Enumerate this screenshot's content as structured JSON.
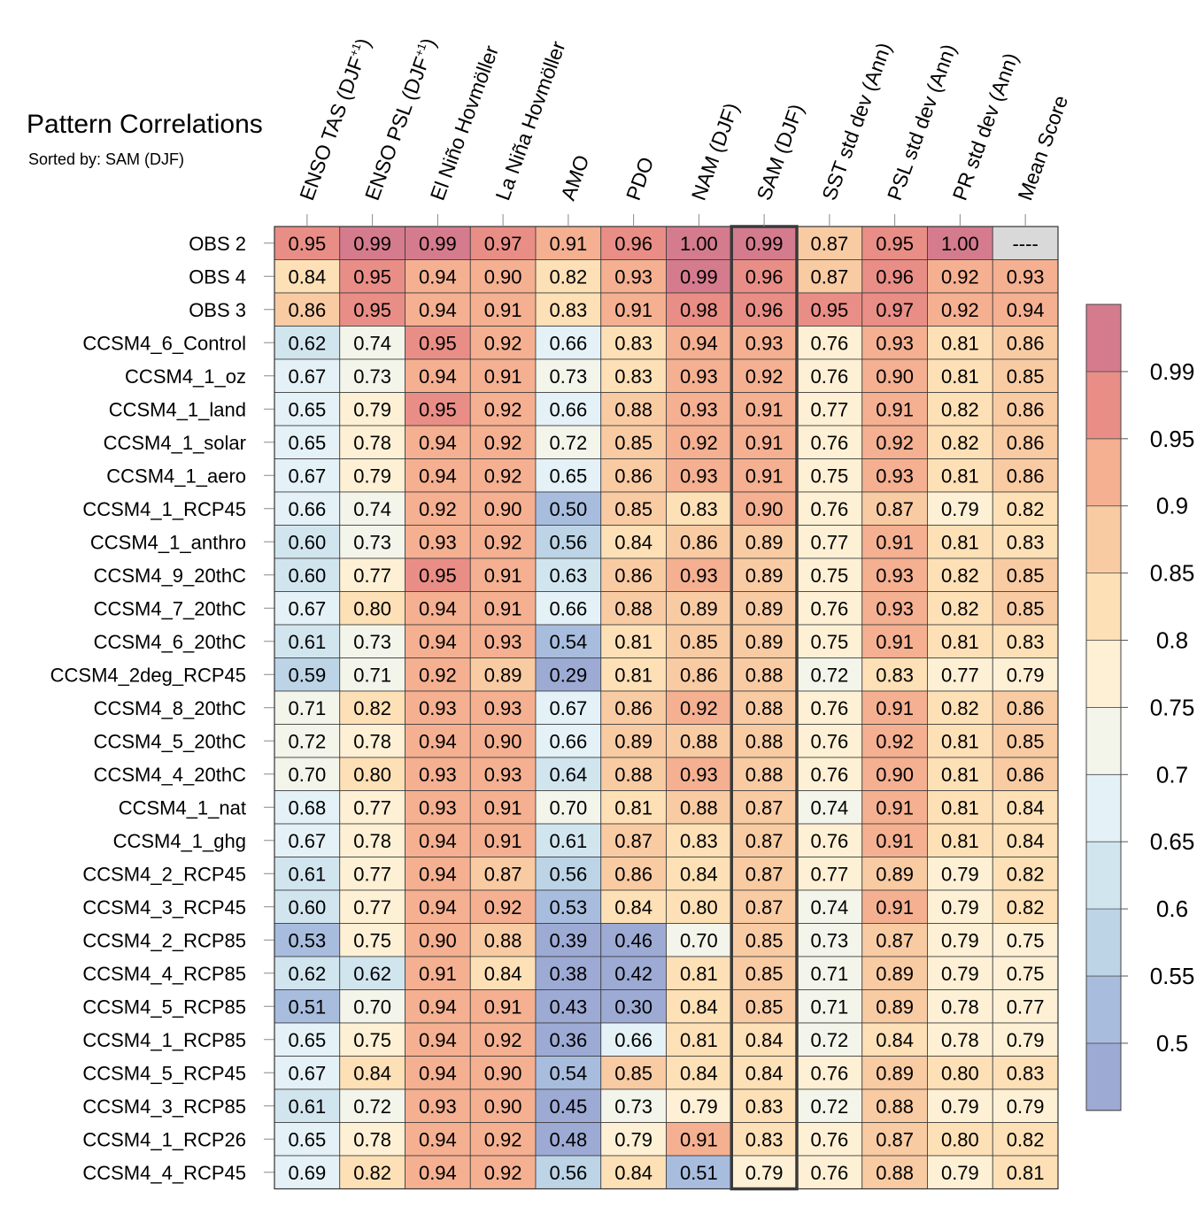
{
  "chart_data": {
    "type": "heatmap",
    "title": "Pattern Correlations",
    "subtitle": "Sorted by: SAM (DJF)",
    "columns": [
      {
        "base": "ENSO TAS (DJF",
        "sup": "+1",
        "tail": ")"
      },
      {
        "base": "ENSO PSL (DJF",
        "sup": "+1",
        "tail": ")"
      },
      {
        "base": "El Niño Hovmöller",
        "sup": "",
        "tail": ""
      },
      {
        "base": "La Niña Hovmöller",
        "sup": "",
        "tail": ""
      },
      {
        "base": "AMO",
        "sup": "",
        "tail": ""
      },
      {
        "base": "PDO",
        "sup": "",
        "tail": ""
      },
      {
        "base": "NAM (DJF)",
        "sup": "",
        "tail": ""
      },
      {
        "base": "SAM (DJF)",
        "sup": "",
        "tail": ""
      },
      {
        "base": "SST std dev (Ann)",
        "sup": "",
        "tail": ""
      },
      {
        "base": "PSL std dev (Ann)",
        "sup": "",
        "tail": ""
      },
      {
        "base": "PR std dev (Ann)",
        "sup": "",
        "tail": ""
      },
      {
        "base": "Mean Score",
        "sup": "",
        "tail": ""
      }
    ],
    "highlight_column": 7,
    "missing_label": "----",
    "rows": [
      {
        "name": "OBS 2",
        "values": [
          0.95,
          0.99,
          0.99,
          0.97,
          0.91,
          0.96,
          1.0,
          0.99,
          0.87,
          0.95,
          1.0,
          null
        ]
      },
      {
        "name": "OBS 4",
        "values": [
          0.84,
          0.95,
          0.94,
          0.9,
          0.82,
          0.93,
          0.99,
          0.96,
          0.87,
          0.96,
          0.92,
          0.93
        ]
      },
      {
        "name": "OBS 3",
        "values": [
          0.86,
          0.95,
          0.94,
          0.91,
          0.83,
          0.91,
          0.98,
          0.96,
          0.95,
          0.97,
          0.92,
          0.94
        ]
      },
      {
        "name": "CCSM4_6_Control",
        "values": [
          0.62,
          0.74,
          0.95,
          0.92,
          0.66,
          0.83,
          0.94,
          0.93,
          0.76,
          0.93,
          0.81,
          0.86
        ]
      },
      {
        "name": "CCSM4_1_oz",
        "values": [
          0.67,
          0.73,
          0.94,
          0.91,
          0.73,
          0.83,
          0.93,
          0.92,
          0.76,
          0.9,
          0.81,
          0.85
        ]
      },
      {
        "name": "CCSM4_1_land",
        "values": [
          0.65,
          0.79,
          0.95,
          0.92,
          0.66,
          0.88,
          0.93,
          0.91,
          0.77,
          0.91,
          0.82,
          0.86
        ]
      },
      {
        "name": "CCSM4_1_solar",
        "values": [
          0.65,
          0.78,
          0.94,
          0.92,
          0.72,
          0.85,
          0.92,
          0.91,
          0.76,
          0.92,
          0.82,
          0.86
        ]
      },
      {
        "name": "CCSM4_1_aero",
        "values": [
          0.67,
          0.79,
          0.94,
          0.92,
          0.65,
          0.86,
          0.93,
          0.91,
          0.75,
          0.93,
          0.81,
          0.86
        ]
      },
      {
        "name": "CCSM4_1_RCP45",
        "values": [
          0.66,
          0.74,
          0.92,
          0.9,
          0.5,
          0.85,
          0.83,
          0.9,
          0.76,
          0.87,
          0.79,
          0.82
        ]
      },
      {
        "name": "CCSM4_1_anthro",
        "values": [
          0.6,
          0.73,
          0.93,
          0.92,
          0.56,
          0.84,
          0.86,
          0.89,
          0.77,
          0.91,
          0.81,
          0.83
        ]
      },
      {
        "name": "CCSM4_9_20thC",
        "values": [
          0.6,
          0.77,
          0.95,
          0.91,
          0.63,
          0.86,
          0.93,
          0.89,
          0.75,
          0.93,
          0.82,
          0.85
        ]
      },
      {
        "name": "CCSM4_7_20thC",
        "values": [
          0.67,
          0.8,
          0.94,
          0.91,
          0.66,
          0.88,
          0.89,
          0.89,
          0.76,
          0.93,
          0.82,
          0.85
        ]
      },
      {
        "name": "CCSM4_6_20thC",
        "values": [
          0.61,
          0.73,
          0.94,
          0.93,
          0.54,
          0.81,
          0.85,
          0.89,
          0.75,
          0.91,
          0.81,
          0.83
        ]
      },
      {
        "name": "CCSM4_2deg_RCP45",
        "values": [
          0.59,
          0.71,
          0.92,
          0.89,
          0.29,
          0.81,
          0.86,
          0.88,
          0.72,
          0.83,
          0.77,
          0.79
        ]
      },
      {
        "name": "CCSM4_8_20thC",
        "values": [
          0.71,
          0.82,
          0.93,
          0.93,
          0.67,
          0.86,
          0.92,
          0.88,
          0.76,
          0.91,
          0.82,
          0.86
        ]
      },
      {
        "name": "CCSM4_5_20thC",
        "values": [
          0.72,
          0.78,
          0.94,
          0.9,
          0.66,
          0.89,
          0.88,
          0.88,
          0.76,
          0.92,
          0.81,
          0.85
        ]
      },
      {
        "name": "CCSM4_4_20thC",
        "values": [
          0.7,
          0.8,
          0.93,
          0.93,
          0.64,
          0.88,
          0.93,
          0.88,
          0.76,
          0.9,
          0.81,
          0.86
        ]
      },
      {
        "name": "CCSM4_1_nat",
        "values": [
          0.68,
          0.77,
          0.93,
          0.91,
          0.7,
          0.81,
          0.88,
          0.87,
          0.74,
          0.91,
          0.81,
          0.84
        ]
      },
      {
        "name": "CCSM4_1_ghg",
        "values": [
          0.67,
          0.78,
          0.94,
          0.91,
          0.61,
          0.87,
          0.83,
          0.87,
          0.76,
          0.91,
          0.81,
          0.84
        ]
      },
      {
        "name": "CCSM4_2_RCP45",
        "values": [
          0.61,
          0.77,
          0.94,
          0.87,
          0.56,
          0.86,
          0.84,
          0.87,
          0.77,
          0.89,
          0.79,
          0.82
        ]
      },
      {
        "name": "CCSM4_3_RCP45",
        "values": [
          0.6,
          0.77,
          0.94,
          0.92,
          0.53,
          0.84,
          0.8,
          0.87,
          0.74,
          0.91,
          0.79,
          0.82
        ]
      },
      {
        "name": "CCSM4_2_RCP85",
        "values": [
          0.53,
          0.75,
          0.9,
          0.88,
          0.39,
          0.46,
          0.7,
          0.85,
          0.73,
          0.87,
          0.79,
          0.75
        ]
      },
      {
        "name": "CCSM4_4_RCP85",
        "values": [
          0.62,
          0.62,
          0.91,
          0.84,
          0.38,
          0.42,
          0.81,
          0.85,
          0.71,
          0.89,
          0.79,
          0.75
        ]
      },
      {
        "name": "CCSM4_5_RCP85",
        "values": [
          0.51,
          0.7,
          0.94,
          0.91,
          0.43,
          0.3,
          0.84,
          0.85,
          0.71,
          0.89,
          0.78,
          0.77
        ]
      },
      {
        "name": "CCSM4_1_RCP85",
        "values": [
          0.65,
          0.75,
          0.94,
          0.92,
          0.36,
          0.66,
          0.81,
          0.84,
          0.72,
          0.84,
          0.78,
          0.79
        ]
      },
      {
        "name": "CCSM4_5_RCP45",
        "values": [
          0.67,
          0.84,
          0.94,
          0.9,
          0.54,
          0.85,
          0.84,
          0.84,
          0.76,
          0.89,
          0.8,
          0.83
        ]
      },
      {
        "name": "CCSM4_3_RCP85",
        "values": [
          0.61,
          0.72,
          0.93,
          0.9,
          0.45,
          0.73,
          0.79,
          0.83,
          0.72,
          0.88,
          0.79,
          0.79
        ]
      },
      {
        "name": "CCSM4_1_RCP26",
        "values": [
          0.65,
          0.78,
          0.94,
          0.92,
          0.48,
          0.79,
          0.91,
          0.83,
          0.76,
          0.87,
          0.8,
          0.82
        ]
      },
      {
        "name": "CCSM4_4_RCP45",
        "values": [
          0.69,
          0.82,
          0.94,
          0.92,
          0.56,
          0.84,
          0.51,
          0.79,
          0.76,
          0.88,
          0.79,
          0.81
        ]
      }
    ],
    "colorbar": {
      "levels": [
        0.5,
        0.55,
        0.6,
        0.65,
        0.7,
        0.75,
        0.8,
        0.85,
        0.9,
        0.95,
        0.99
      ],
      "labels": [
        "0.5",
        "0.55",
        "0.6",
        "0.65",
        "0.7",
        "0.75",
        "0.8",
        "0.85",
        "0.9",
        "0.95",
        "0.99"
      ],
      "colors": [
        "#9daad4",
        "#a8bdde",
        "#bcd4e6",
        "#d1e5ef",
        "#e4f1f6",
        "#f3f4ea",
        "#fdf0d5",
        "#fde0b6",
        "#f9cba3",
        "#f4b091",
        "#e98e86",
        "#d57b8e"
      ],
      "missing_color": "#d9d9d9"
    }
  }
}
